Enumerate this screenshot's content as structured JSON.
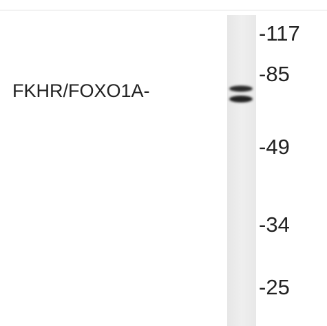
{
  "label": "FKHR/FOXO1A-",
  "markers": [
    "-117",
    "-85",
    "-49",
    "-34",
    "-25"
  ]
}
